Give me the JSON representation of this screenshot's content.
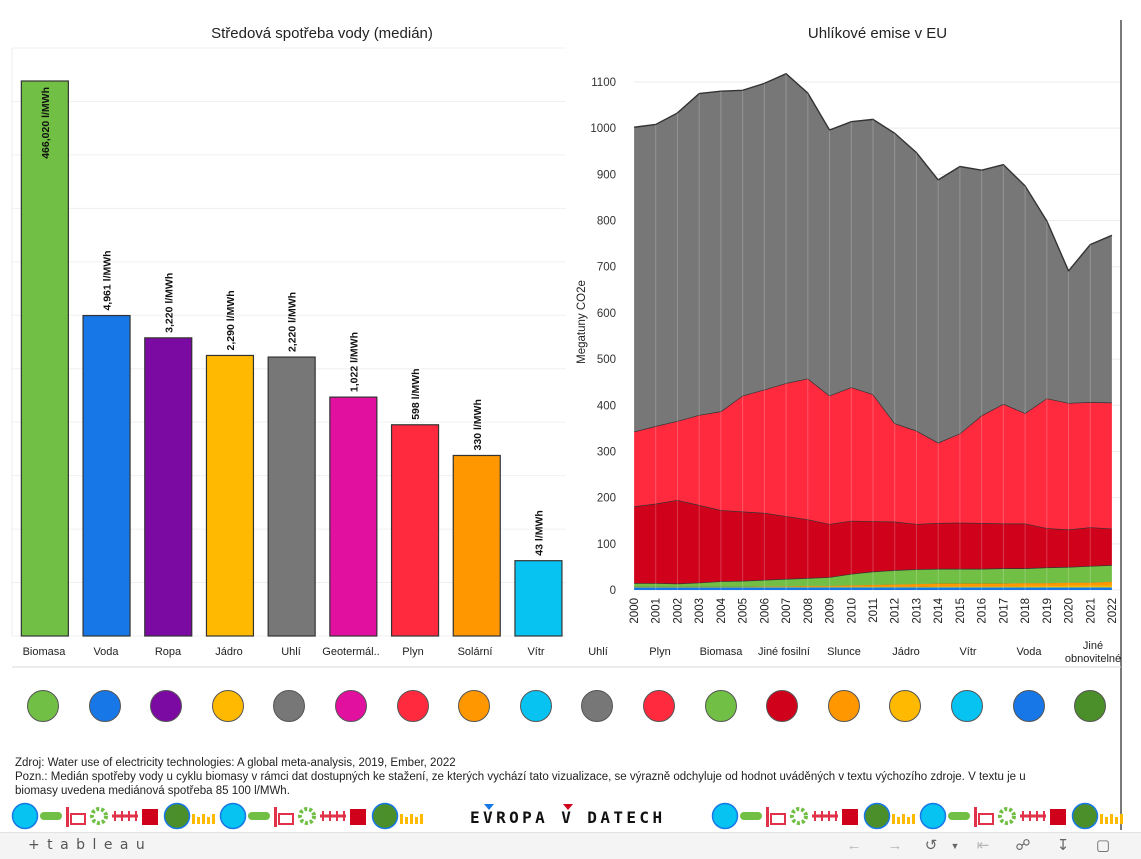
{
  "left_title": "Středová spotřeba vody (medián)",
  "right_title": "Uhlíkové emise v EU",
  "chart_data": [
    {
      "type": "bar",
      "title": "Středová spotřeba vody (medián)",
      "categories": [
        "Biomasa",
        "Voda",
        "Ropa",
        "Jádro",
        "Uhlí",
        "Geotermál..",
        "Plyn",
        "Solární",
        "Vítr"
      ],
      "values": [
        466020,
        4961,
        3220,
        2290,
        2220,
        1022,
        598,
        330,
        43
      ],
      "labels": [
        "466,020 l/MWh",
        "4,961 l/MWh",
        "3,220 l/MWh",
        "2,290 l/MWh",
        "2,220 l/MWh",
        "1,022 l/MWh",
        "598 l/MWh",
        "330 l/MWh",
        "43 l/MWh"
      ],
      "colors": [
        "#71bf44",
        "#1877e6",
        "#7b0aa3",
        "#ffb900",
        "#777777",
        "#e2109e",
        "#ff2a3e",
        "#ff9800",
        "#06c3f2"
      ],
      "scale": "log",
      "ylim": [
        10,
        466020
      ]
    },
    {
      "type": "area",
      "title": "Uhlíkové emise v EU",
      "ylabel": "Megatuny CO2e",
      "x": [
        2000,
        2001,
        2002,
        2003,
        2004,
        2005,
        2006,
        2007,
        2008,
        2009,
        2010,
        2011,
        2012,
        2013,
        2014,
        2015,
        2016,
        2017,
        2018,
        2019,
        2020,
        2021,
        2022
      ],
      "ylim": [
        0,
        1150
      ],
      "yticks": [
        0,
        100,
        200,
        300,
        400,
        500,
        600,
        700,
        800,
        900,
        1000,
        1100
      ],
      "series": [
        {
          "color": "#1877e6",
          "values": [
            5,
            5,
            5,
            5,
            5,
            5,
            5,
            5,
            5,
            5,
            5,
            5,
            5,
            5,
            5,
            5,
            5,
            5,
            5,
            5,
            5,
            5,
            5
          ]
        },
        {
          "color": "#06c3f2",
          "values": [
            1,
            1,
            1,
            1,
            1,
            1,
            1,
            1,
            1,
            1,
            1,
            1,
            1,
            1,
            1,
            1,
            1,
            1,
            1,
            1,
            1,
            1,
            1
          ]
        },
        {
          "color": "#ffb900",
          "values": [
            1,
            1,
            1,
            1,
            1,
            1,
            1,
            1,
            1,
            1,
            1,
            1,
            1,
            1,
            2,
            2,
            2,
            2,
            3,
            3,
            4,
            4,
            5
          ]
        },
        {
          "color": "#ff9800",
          "values": [
            0,
            0,
            0,
            0,
            0,
            0,
            1,
            1,
            2,
            2,
            3,
            4,
            5,
            6,
            6,
            6,
            6,
            6,
            6,
            6,
            6,
            6,
            7
          ]
        },
        {
          "color": "#71bf44",
          "values": [
            8,
            8,
            7,
            9,
            12,
            13,
            14,
            16,
            17,
            19,
            25,
            29,
            31,
            32,
            32,
            32,
            32,
            33,
            32,
            34,
            34,
            36,
            36
          ]
        },
        {
          "color": "#d0021b",
          "values": [
            166,
            172,
            181,
            168,
            154,
            150,
            145,
            136,
            127,
            115,
            115,
            109,
            105,
            98,
            99,
            100,
            99,
            97,
            97,
            85,
            81,
            84,
            79
          ]
        },
        {
          "color": "#ff2a3e",
          "values": [
            162,
            168,
            171,
            195,
            214,
            251,
            267,
            288,
            305,
            278,
            289,
            275,
            213,
            202,
            174,
            193,
            233,
            259,
            239,
            281,
            274,
            271,
            273
          ]
        },
        {
          "color": "#777777",
          "values": [
            659,
            653,
            667,
            696,
            693,
            661,
            663,
            670,
            618,
            575,
            575,
            595,
            628,
            602,
            569,
            578,
            531,
            518,
            492,
            384,
            286,
            341,
            362
          ]
        }
      ]
    }
  ],
  "left_categories": [
    "Biomasa",
    "Voda",
    "Ropa",
    "Jádro",
    "Uhlí",
    "Geotermál..",
    "Plyn",
    "Solární",
    "Vítr"
  ],
  "right_categories": [
    "Uhlí",
    "Plyn",
    "Biomasa",
    "Jiné fosilní",
    "Slunce",
    "Jádro",
    "Vítr",
    "Voda",
    "Jiné obnovitelné"
  ],
  "legend_dots": [
    "#71bf44",
    "#1877e6",
    "#7b0aa3",
    "#ffb900",
    "#777777",
    "#e2109e",
    "#ff2a3e",
    "#ff9800",
    "#06c3f2",
    "#777777",
    "#ff2a3e",
    "#71bf44",
    "#d0021b",
    "#ff9800",
    "#ffb900",
    "#06c3f2",
    "#1877e6",
    "#4a8f2a"
  ],
  "source_line": "Zdroj: Water use of electricity technologies: A global meta-analysis, 2019, Ember, 2022",
  "note_line_1": "Pozn.: Medián spotřeby vody u cyklu biomasy v rámci dat dostupných ke stažení, ze kterých vychází tato vizualizace, se výrazně odchyluje od hodnot uváděných v textu výchozího zdroje. V textu je u",
  "note_line_2": "biomasy uvedena mediánová spotřeba 85 100 l/MWh.",
  "brand_text": "EVROPA V DATECH",
  "tableau_logo": "+ t a b l e a u",
  "toolbar_icons": [
    "undo-icon",
    "redo-icon",
    "revert-icon",
    "reset-icon",
    "share-icon",
    "download-icon",
    "fullscreen-icon"
  ]
}
